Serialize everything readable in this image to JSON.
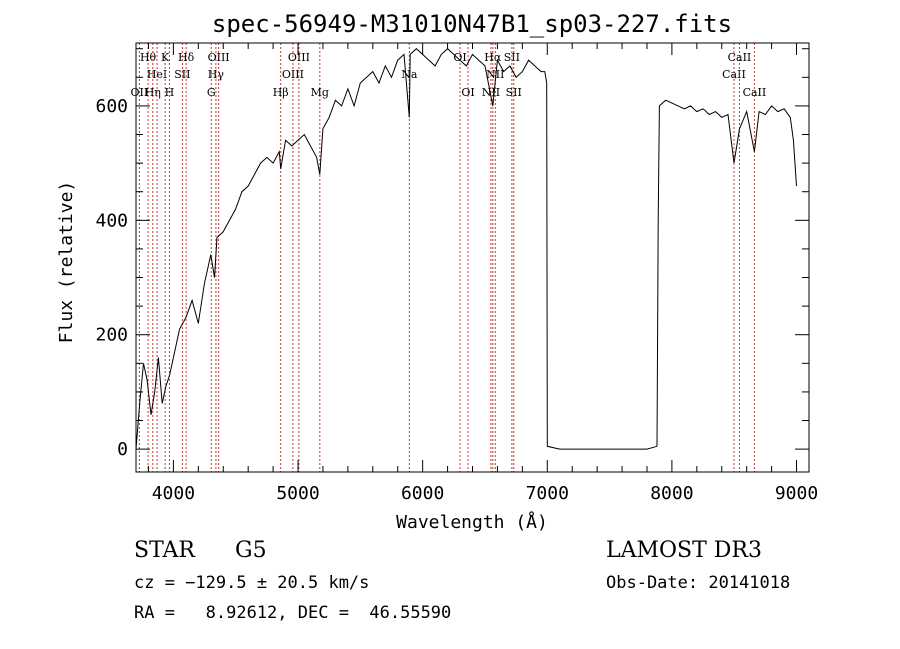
{
  "chart_data": {
    "type": "line",
    "title": "spec-56949-M31010N47B1_sp03-227.fits",
    "xlabel": "Wavelength (Å)",
    "ylabel": "Flux (relative)",
    "xlim": [
      3700,
      9100
    ],
    "ylim": [
      -40,
      710
    ],
    "xticks": [
      4000,
      5000,
      6000,
      7000,
      8000,
      9000
    ],
    "xtick_labels": [
      "4000",
      "5000",
      "6000",
      "7000",
      "8000",
      "9000"
    ],
    "yticks": [
      0,
      200,
      400,
      600
    ],
    "ytick_labels": [
      "0",
      "200",
      "400",
      "600"
    ],
    "grid": false,
    "series": [
      {
        "name": "spectrum",
        "x": [
          3700,
          3730,
          3760,
          3790,
          3820,
          3850,
          3880,
          3910,
          3940,
          3970,
          4000,
          4050,
          4100,
          4150,
          4200,
          4250,
          4300,
          4330,
          4350,
          4400,
          4450,
          4500,
          4550,
          4600,
          4650,
          4700,
          4750,
          4800,
          4850,
          4861,
          4900,
          4950,
          5000,
          5050,
          5100,
          5150,
          5175,
          5200,
          5250,
          5300,
          5350,
          5400,
          5450,
          5500,
          5550,
          5600,
          5650,
          5700,
          5750,
          5800,
          5850,
          5893,
          5900,
          5950,
          6000,
          6050,
          6100,
          6150,
          6200,
          6250,
          6300,
          6350,
          6400,
          6450,
          6500,
          6563,
          6600,
          6650,
          6700,
          6750,
          6800,
          6850,
          6900,
          6950,
          6980,
          6995,
          7000,
          7100,
          7200,
          7300,
          7400,
          7500,
          7600,
          7700,
          7800,
          7880,
          7890,
          7900,
          7950,
          8000,
          8050,
          8100,
          8150,
          8200,
          8250,
          8300,
          8350,
          8400,
          8450,
          8498,
          8542,
          8600,
          8662,
          8700,
          8750,
          8800,
          8850,
          8900,
          8950,
          8975,
          9000
        ],
        "y": [
          0,
          80,
          150,
          120,
          60,
          100,
          160,
          80,
          110,
          130,
          160,
          210,
          230,
          260,
          220,
          290,
          340,
          300,
          370,
          380,
          400,
          420,
          450,
          460,
          480,
          500,
          510,
          500,
          520,
          490,
          540,
          530,
          540,
          550,
          530,
          510,
          480,
          560,
          580,
          610,
          600,
          630,
          600,
          640,
          650,
          660,
          640,
          670,
          650,
          680,
          690,
          580,
          690,
          700,
          690,
          680,
          670,
          690,
          700,
          690,
          680,
          670,
          690,
          680,
          670,
          600,
          680,
          660,
          670,
          650,
          660,
          680,
          670,
          660,
          660,
          640,
          5,
          0,
          0,
          0,
          0,
          0,
          0,
          0,
          0,
          5,
          400,
          600,
          610,
          605,
          600,
          595,
          600,
          590,
          595,
          585,
          590,
          580,
          585,
          500,
          560,
          590,
          520,
          590,
          585,
          600,
          590,
          595,
          580,
          540,
          460
        ],
        "color": "#000000"
      }
    ],
    "line_markers": [
      {
        "wavelength": 3727,
        "label": "OII",
        "row": 3
      },
      {
        "wavelength": 3797,
        "label": "Hθ",
        "row": 1
      },
      {
        "wavelength": 3835,
        "label": "Hη",
        "row": 3
      },
      {
        "wavelength": 3869,
        "label": "HeI",
        "row": 2
      },
      {
        "wavelength": 3934,
        "label": "K",
        "row": 1
      },
      {
        "wavelength": 3968,
        "label": "H",
        "row": 3
      },
      {
        "wavelength": 4072,
        "label": "SII",
        "row": 2
      },
      {
        "wavelength": 4102,
        "label": "Hδ",
        "row": 1
      },
      {
        "wavelength": 4304,
        "label": "G",
        "row": 3
      },
      {
        "wavelength": 4341,
        "label": "Hγ",
        "row": 2
      },
      {
        "wavelength": 4363,
        "label": "OIII",
        "row": 1
      },
      {
        "wavelength": 4861,
        "label": "Hβ",
        "row": 3
      },
      {
        "wavelength": 4959,
        "label": "OIII",
        "row": 2
      },
      {
        "wavelength": 5007,
        "label": "OIII",
        "row": 1
      },
      {
        "wavelength": 5175,
        "label": "Mg",
        "row": 3
      },
      {
        "wavelength": 5893,
        "label": "Na",
        "row": 2
      },
      {
        "wavelength": 6300,
        "label": "OI",
        "row": 1
      },
      {
        "wavelength": 6364,
        "label": "OI",
        "row": 3
      },
      {
        "wavelength": 6548,
        "label": "NII",
        "row": 3
      },
      {
        "wavelength": 6563,
        "label": "Hα",
        "row": 1
      },
      {
        "wavelength": 6583,
        "label": "NII",
        "row": 2
      },
      {
        "wavelength": 6716,
        "label": "SII",
        "row": 1
      },
      {
        "wavelength": 6731,
        "label": "SII",
        "row": 3
      },
      {
        "wavelength": 8498,
        "label": "CaII",
        "row": 2
      },
      {
        "wavelength": 8542,
        "label": "CaII",
        "row": 1
      },
      {
        "wavelength": 8662,
        "label": "CaII",
        "row": 3
      }
    ],
    "marker_color": "#c0392b"
  },
  "info": {
    "class_label": "STAR",
    "subclass": "G5",
    "survey": "LAMOST DR3",
    "cz": "cz = −129.5 ± 20.5 km/s",
    "obs_date": "Obs-Date: 20141018",
    "radec": "RA =   8.92612, DEC =  46.55590"
  }
}
